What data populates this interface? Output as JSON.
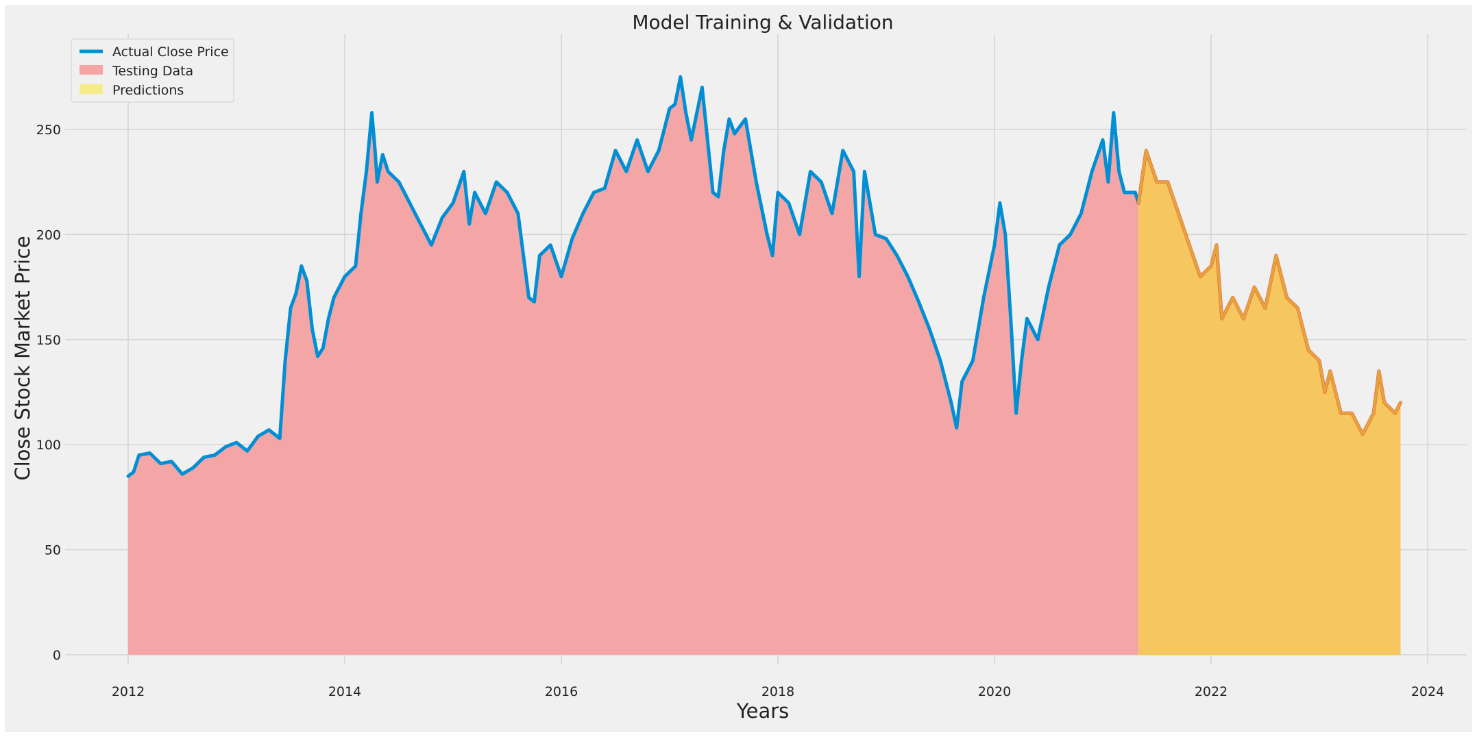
{
  "chart_data": {
    "type": "area",
    "title": "Model Training & Validation",
    "xlabel": "Years",
    "ylabel": "Close Stock Market Price",
    "xlim": [
      2011.4,
      2024.3
    ],
    "ylim": [
      -12,
      290
    ],
    "x_ticks": [
      2012,
      2014,
      2016,
      2018,
      2020,
      2022,
      2024
    ],
    "y_ticks": [
      0,
      50,
      100,
      150,
      200,
      250
    ],
    "grid": true,
    "legend_position": "top-left",
    "colors": {
      "background": "#f0f0f0",
      "grid": "#d4d4d4",
      "actual_line": "#008fd5",
      "testing_fill": "#f4a6a6",
      "predictions_fill": "#f7e95d",
      "overlap_fill": "#f6c75e",
      "prediction_line": "#e5a33a",
      "prediction_edge": "#e8534e"
    },
    "series": [
      {
        "name": "Actual Close Price",
        "kind": "line",
        "x": [
          2012.0,
          2012.05,
          2012.1,
          2012.2,
          2012.3,
          2012.4,
          2012.5,
          2012.6,
          2012.7,
          2012.8,
          2012.9,
          2013.0,
          2013.1,
          2013.2,
          2013.3,
          2013.4,
          2013.45,
          2013.5,
          2013.55,
          2013.6,
          2013.65,
          2013.7,
          2013.75,
          2013.8,
          2013.85,
          2013.9,
          2014.0,
          2014.1,
          2014.15,
          2014.2,
          2014.25,
          2014.28,
          2014.3,
          2014.35,
          2014.4,
          2014.5,
          2014.6,
          2014.7,
          2014.8,
          2014.9,
          2015.0,
          2015.1,
          2015.15,
          2015.2,
          2015.3,
          2015.4,
          2015.5,
          2015.6,
          2015.7,
          2015.75,
          2015.8,
          2015.9,
          2016.0,
          2016.1,
          2016.2,
          2016.3,
          2016.4,
          2016.5,
          2016.6,
          2016.7,
          2016.8,
          2016.9,
          2017.0,
          2017.05,
          2017.1,
          2017.15,
          2017.2,
          2017.3,
          2017.4,
          2017.45,
          2017.5,
          2017.55,
          2017.6,
          2017.7,
          2017.8,
          2017.9,
          2017.95,
          2018.0,
          2018.1,
          2018.2,
          2018.3,
          2018.4,
          2018.5,
          2018.6,
          2018.7,
          2018.75,
          2018.8,
          2018.9,
          2019.0,
          2019.1,
          2019.2,
          2019.3,
          2019.4,
          2019.5,
          2019.6,
          2019.65,
          2019.7,
          2019.8,
          2019.9,
          2020.0,
          2020.05,
          2020.1,
          2020.15,
          2020.2,
          2020.25,
          2020.3,
          2020.4,
          2020.5,
          2020.6,
          2020.7,
          2020.8,
          2020.9,
          2021.0,
          2021.05,
          2021.1,
          2021.15,
          2021.2,
          2021.3,
          2021.33
        ],
        "y": [
          85,
          87,
          95,
          96,
          91,
          92,
          86,
          89,
          94,
          95,
          99,
          101,
          97,
          104,
          107,
          103,
          140,
          165,
          172,
          185,
          178,
          155,
          142,
          146,
          160,
          170,
          180,
          185,
          210,
          230,
          258,
          240,
          225,
          238,
          230,
          225,
          215,
          205,
          195,
          208,
          215,
          230,
          205,
          220,
          210,
          225,
          220,
          210,
          170,
          168,
          190,
          195,
          180,
          198,
          210,
          220,
          222,
          240,
          230,
          245,
          230,
          240,
          260,
          262,
          275,
          258,
          245,
          270,
          220,
          218,
          240,
          255,
          248,
          255,
          225,
          200,
          190,
          220,
          215,
          200,
          230,
          225,
          210,
          240,
          230,
          180,
          230,
          200,
          198,
          190,
          180,
          168,
          155,
          140,
          120,
          108,
          130,
          140,
          170,
          195,
          215,
          200,
          160,
          115,
          140,
          160,
          150,
          175,
          195,
          200,
          210,
          230,
          245,
          225,
          258,
          230,
          220,
          220,
          215
        ]
      },
      {
        "name": "Testing Data",
        "kind": "area",
        "x": [
          2012.0,
          2021.33
        ],
        "y": [
          85,
          215
        ]
      },
      {
        "name": "Predictions",
        "kind": "area",
        "x": [
          2021.33,
          2021.4,
          2021.5,
          2021.6,
          2021.7,
          2021.8,
          2021.9,
          2022.0,
          2022.05,
          2022.1,
          2022.2,
          2022.3,
          2022.4,
          2022.5,
          2022.6,
          2022.7,
          2022.8,
          2022.9,
          2023.0,
          2023.05,
          2023.1,
          2023.2,
          2023.3,
          2023.4,
          2023.5,
          2023.55,
          2023.6,
          2023.7,
          2023.75
        ],
        "y": [
          215,
          240,
          225,
          225,
          210,
          195,
          180,
          185,
          195,
          160,
          170,
          160,
          175,
          165,
          190,
          170,
          165,
          145,
          140,
          125,
          135,
          115,
          115,
          105,
          115,
          135,
          120,
          115,
          120
        ]
      }
    ]
  }
}
